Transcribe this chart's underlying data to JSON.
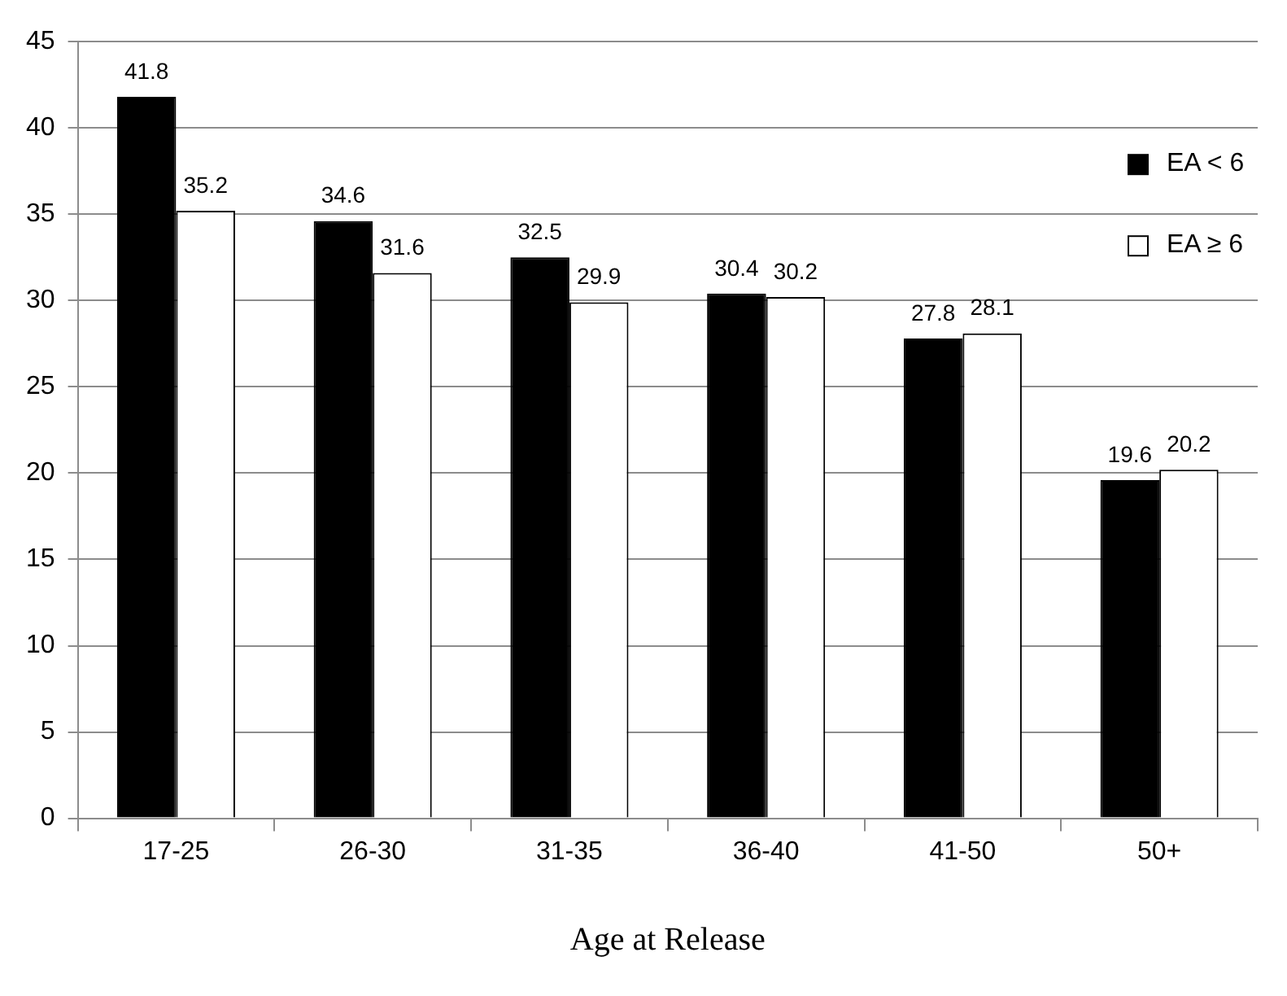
{
  "chart_data": {
    "type": "bar",
    "xlabel": "Age at Release",
    "categories": [
      "17-25",
      "26-30",
      "31-35",
      "36-40",
      "41-50",
      "50+"
    ],
    "series": [
      {
        "name": "EA < 6",
        "color": "#000000",
        "values": [
          41.8,
          34.6,
          32.5,
          30.4,
          27.8,
          19.6
        ]
      },
      {
        "name": "EA ≥ 6",
        "color": "#ffffff",
        "values": [
          35.2,
          31.6,
          29.9,
          30.2,
          28.1,
          20.2
        ]
      }
    ],
    "ylim": [
      0,
      45
    ],
    "yticks": [
      0,
      5,
      10,
      15,
      20,
      25,
      30,
      35,
      40,
      45
    ],
    "grid": "y",
    "legend": "top right",
    "data_labels": true
  }
}
